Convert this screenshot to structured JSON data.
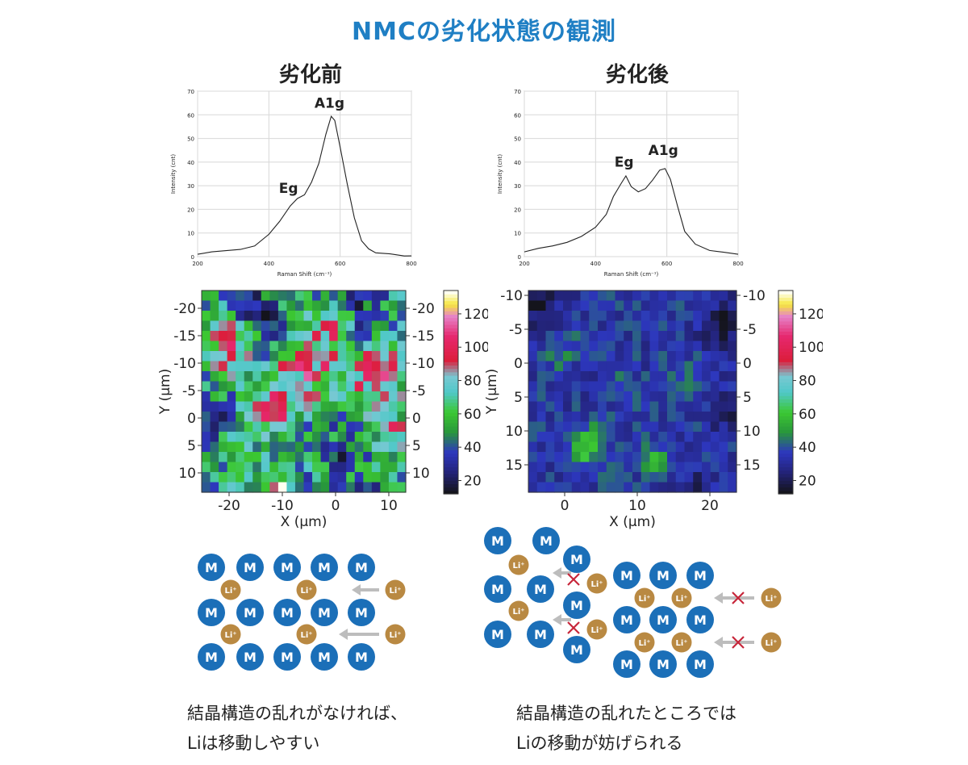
{
  "title": "NMCの劣化状態の観測",
  "before": {
    "label": "劣化前",
    "spectrum": {
      "type": "line",
      "xlabel": "Raman Shift (cm⁻¹)",
      "ylabel": "Intensity (cnt)",
      "xlim": [
        200,
        800
      ],
      "ylim": [
        0,
        70
      ],
      "xticks": [
        "200",
        "400",
        "600",
        "800"
      ],
      "yticks": [
        "0",
        "10",
        "20",
        "30",
        "40",
        "50",
        "60",
        "70"
      ],
      "annotations": [
        "Eg",
        "A1g"
      ],
      "x": [
        200,
        240,
        280,
        320,
        360,
        400,
        430,
        460,
        480,
        500,
        520,
        540,
        560,
        575,
        585,
        600,
        620,
        640,
        660,
        680,
        700,
        740,
        780,
        800
      ],
      "y": [
        1,
        1.5,
        2,
        3,
        5,
        10,
        15,
        21,
        24,
        26,
        32,
        40,
        52,
        59,
        57,
        46,
        31,
        17,
        7,
        3,
        1,
        0.8,
        0.5,
        0.3
      ]
    },
    "map": {
      "xlabel": "X (μm)",
      "ylabel": "Y (μm)",
      "xticks": [
        "-20",
        "-10",
        "0",
        "10"
      ],
      "yticks": [
        "-20",
        "-15",
        "-10",
        "-5",
        "0",
        "5",
        "10"
      ],
      "colorbar_ticks": [
        "20",
        "40",
        "60",
        "80",
        "100",
        "120"
      ]
    },
    "caption": [
      "結晶構造の乱れがなければ、",
      "Liは移動しやすい"
    ]
  },
  "after": {
    "label": "劣化後",
    "spectrum": {
      "type": "line",
      "xlabel": "Raman Shift (cm⁻¹)",
      "ylabel": "Intensity (cnt)",
      "xlim": [
        200,
        800
      ],
      "ylim": [
        0,
        70
      ],
      "xticks": [
        "200",
        "400",
        "600",
        "800"
      ],
      "yticks": [
        "0",
        "10",
        "20",
        "30",
        "40",
        "50",
        "60",
        "70"
      ],
      "annotations": [
        "Eg",
        "A1g"
      ],
      "x": [
        200,
        240,
        280,
        320,
        360,
        400,
        430,
        450,
        470,
        485,
        500,
        520,
        540,
        560,
        580,
        595,
        610,
        630,
        650,
        680,
        720,
        760,
        800
      ],
      "y": [
        2,
        3,
        4,
        6,
        9,
        13,
        18,
        25,
        30,
        34,
        30,
        28,
        29,
        32,
        36,
        37,
        33,
        22,
        11,
        5,
        2,
        1.5,
        1
      ]
    },
    "map": {
      "xlabel": "X (μm)",
      "ylabel": "Y (μm)",
      "xticks": [
        "0",
        "10",
        "20"
      ],
      "yticks": [
        "-10",
        "-5",
        "0",
        "5",
        "10",
        "15"
      ],
      "colorbar_ticks": [
        "20",
        "40",
        "60",
        "80",
        "100",
        "120"
      ]
    },
    "caption": [
      "結晶構造の乱れたところでは",
      "Liの移動が妨げられる"
    ]
  },
  "diagram": {
    "metal_label": "M",
    "li_label": "Li⁺"
  },
  "colors": {
    "title": "#1f7fc4",
    "metal": "#1b6fb8",
    "li": "#b98942",
    "arrow": "#bdbdbd",
    "cross": "#c7263a"
  }
}
